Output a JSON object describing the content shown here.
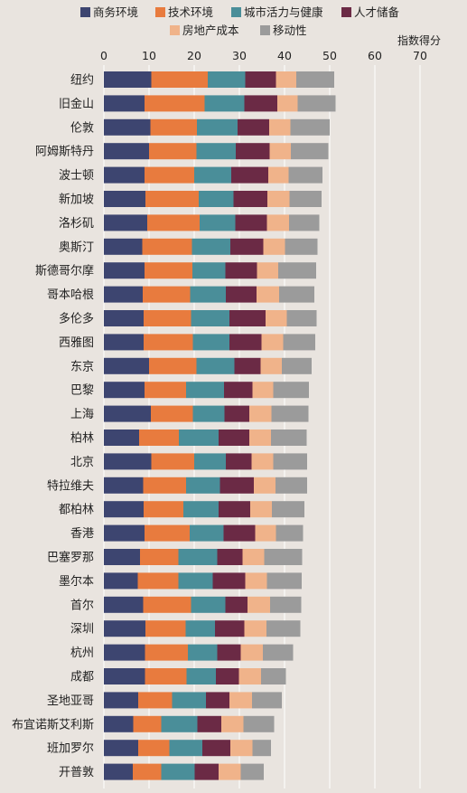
{
  "colors": {
    "background": "#e9e4df",
    "grid": "#ffffff",
    "text": "#222222"
  },
  "chart_data": {
    "type": "bar",
    "orientation": "horizontal",
    "stacked": true,
    "unit_label": "指数得分",
    "xlim": [
      0,
      70
    ],
    "xticks": [
      0,
      10,
      20,
      30,
      40,
      50,
      60,
      70
    ],
    "grid": true,
    "legend_position": "top",
    "categories": [
      "纽约",
      "旧金山",
      "伦敦",
      "阿姆斯特丹",
      "波士顿",
      "新加坡",
      "洛杉矶",
      "奥斯汀",
      "斯德哥尔摩",
      "哥本哈根",
      "多伦多",
      "西雅图",
      "东京",
      "巴黎",
      "上海",
      "柏林",
      "北京",
      "特拉维夫",
      "都柏林",
      "香港",
      "巴塞罗那",
      "墨尔本",
      "首尔",
      "深圳",
      "杭州",
      "成都",
      "圣地亚哥",
      "布宜诺斯艾利斯",
      "班加罗尔",
      "开普敦"
    ],
    "series": [
      {
        "name": "商务环境",
        "color": "#3d4570",
        "values": [
          10.5,
          9.0,
          10.3,
          10.0,
          9.0,
          9.2,
          9.6,
          8.5,
          9.0,
          8.6,
          8.8,
          8.8,
          10.0,
          9.0,
          10.4,
          7.8,
          10.5,
          8.7,
          8.8,
          9.0,
          8.0,
          7.5,
          8.7,
          9.2,
          9.1,
          9.1,
          7.6,
          6.5,
          7.6,
          6.4
        ]
      },
      {
        "name": "技术环境",
        "color": "#e87b3e",
        "values": [
          12.5,
          13.3,
          10.3,
          10.5,
          11.0,
          11.8,
          11.6,
          11.0,
          10.6,
          10.5,
          10.5,
          10.9,
          10.5,
          9.2,
          9.3,
          8.8,
          9.5,
          9.5,
          8.8,
          10.0,
          8.5,
          9.0,
          10.6,
          8.9,
          9.5,
          9.2,
          7.5,
          6.2,
          6.9,
          6.3
        ]
      },
      {
        "name": "城市活力与健康",
        "color": "#4a8e99",
        "values": [
          8.3,
          8.8,
          9.0,
          8.7,
          8.2,
          7.7,
          7.9,
          8.5,
          7.3,
          7.9,
          8.5,
          8.1,
          8.4,
          8.4,
          7.0,
          8.8,
          7.0,
          7.5,
          7.8,
          7.5,
          8.6,
          7.6,
          7.6,
          6.5,
          6.5,
          6.5,
          7.5,
          8.0,
          7.3,
          7.4
        ]
      },
      {
        "name": "人才储备",
        "color": "#6b2a45",
        "values": [
          6.8,
          7.3,
          7.0,
          7.5,
          8.2,
          7.5,
          7.0,
          7.3,
          7.0,
          6.8,
          8.0,
          7.1,
          5.8,
          6.3,
          5.5,
          6.8,
          5.7,
          7.5,
          7.0,
          7.0,
          5.6,
          7.2,
          4.9,
          6.5,
          5.2,
          5.1,
          5.2,
          5.3,
          6.2,
          5.3
        ]
      },
      {
        "name": "房地产成本",
        "color": "#f0b38a",
        "values": [
          4.5,
          4.5,
          4.7,
          4.7,
          4.5,
          4.9,
          4.9,
          4.8,
          4.7,
          5.0,
          4.7,
          4.8,
          4.7,
          4.6,
          4.9,
          4.8,
          4.8,
          4.8,
          4.8,
          4.6,
          4.8,
          4.8,
          5.0,
          4.9,
          4.9,
          4.9,
          5.0,
          4.9,
          4.9,
          4.9
        ]
      },
      {
        "name": "移动性",
        "color": "#9b9b9b",
        "values": [
          8.4,
          8.4,
          8.7,
          8.3,
          7.5,
          7.1,
          6.7,
          7.2,
          8.4,
          7.8,
          6.6,
          7.1,
          6.6,
          7.9,
          8.2,
          7.9,
          7.5,
          7.0,
          7.2,
          6.0,
          8.4,
          7.7,
          6.9,
          7.5,
          6.7,
          5.5,
          6.6,
          6.8,
          4.1,
          5.1
        ]
      }
    ]
  }
}
